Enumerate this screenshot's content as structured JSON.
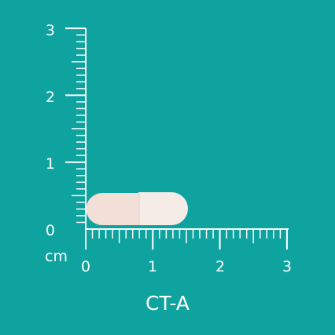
{
  "colors": {
    "background": "#0fa39f",
    "ruler": "#ffffff",
    "capsule_cap": "#f5ebe7",
    "capsule_body": "#f1dfd8"
  },
  "ruler": {
    "unit": "cm",
    "x_labels": [
      "0",
      "1",
      "2",
      "3"
    ],
    "y_labels": [
      "0",
      "1",
      "2",
      "3"
    ],
    "max_cm": 3,
    "minor_per_cm": 10
  },
  "product": {
    "code": "CT-A",
    "shape": "capsule",
    "length_cm": 1.5
  }
}
